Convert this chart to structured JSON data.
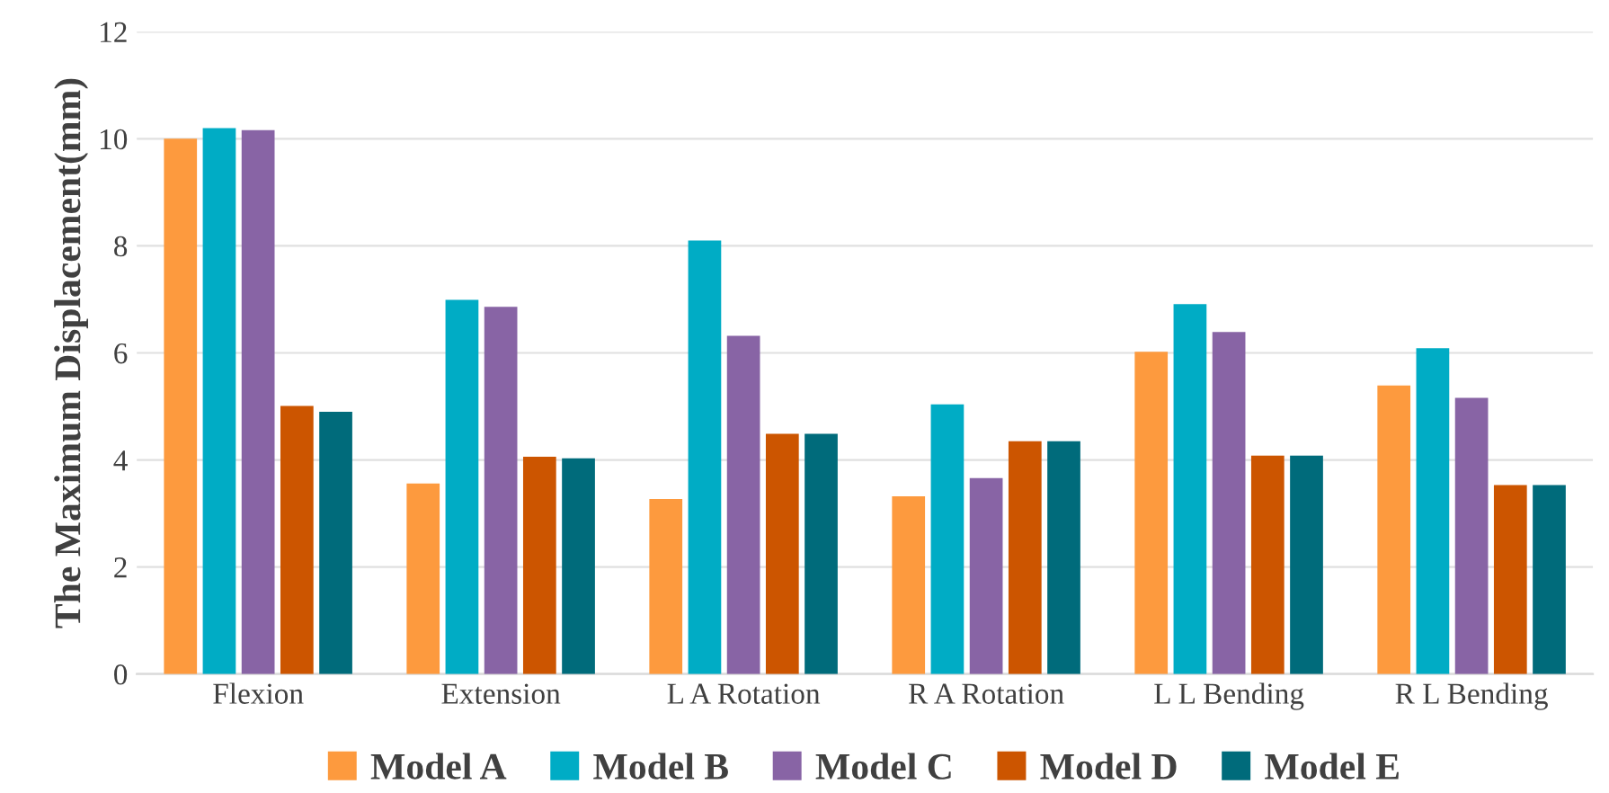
{
  "chart_data": {
    "type": "bar",
    "ylabel": "The Maximum Displacement(mm)",
    "categories": [
      "Flexion",
      "Extension",
      "L A Rotation",
      "R A Rotation",
      "L L Bending",
      "R L Bending"
    ],
    "series": [
      {
        "name": "Model A",
        "color": "#fd9a3e",
        "values": [
          10.0,
          3.56,
          3.27,
          3.32,
          6.02,
          5.39
        ]
      },
      {
        "name": "Model B",
        "color": "#00acc5",
        "values": [
          10.2,
          6.99,
          8.1,
          5.04,
          6.91,
          6.09
        ]
      },
      {
        "name": "Model C",
        "color": "#8864a5",
        "values": [
          10.16,
          6.86,
          6.32,
          3.66,
          6.39,
          5.16
        ]
      },
      {
        "name": "Model D",
        "color": "#cc5500",
        "values": [
          5.01,
          4.06,
          4.49,
          4.35,
          4.08,
          3.53
        ]
      },
      {
        "name": "Model E",
        "color": "#006b7b",
        "values": [
          4.9,
          4.03,
          4.49,
          4.35,
          4.08,
          3.53
        ]
      }
    ],
    "ylim": [
      0,
      12
    ],
    "yticks": [
      0,
      2,
      4,
      6,
      8,
      10,
      12
    ],
    "grid": "y",
    "legend": "bottom"
  }
}
